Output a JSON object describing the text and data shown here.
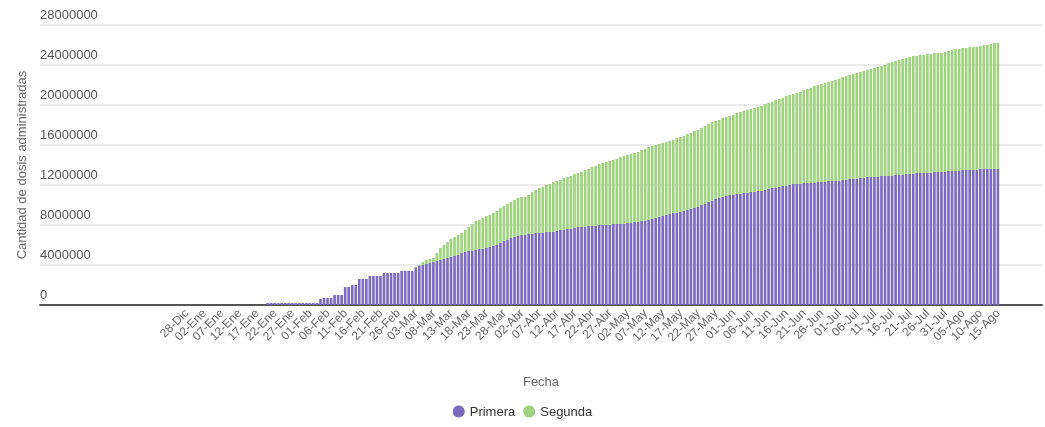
{
  "chart_data": {
    "type": "bar",
    "stacked": true,
    "xlabel": "Fecha",
    "ylabel": "Cantidad de dosis administradas",
    "categories": [
      null,
      null,
      null,
      null,
      null,
      null,
      null,
      null,
      null,
      null,
      null,
      null,
      null,
      null,
      null,
      null,
      null,
      null,
      null,
      null,
      null,
      null,
      null,
      null,
      null,
      null,
      null,
      null,
      null,
      null,
      null,
      null,
      null,
      null,
      null,
      null,
      null,
      null,
      null,
      null,
      null,
      "28-Dic",
      null,
      null,
      null,
      null,
      "02-Ene",
      null,
      null,
      null,
      null,
      "07-Ene",
      null,
      null,
      null,
      null,
      "12-Ene",
      null,
      null,
      null,
      null,
      "17-Ene",
      null,
      null,
      null,
      null,
      "22-Ene",
      null,
      null,
      null,
      null,
      "27-Ene",
      null,
      null,
      null,
      null,
      "01-Feb",
      null,
      null,
      null,
      null,
      "06-Feb",
      null,
      null,
      null,
      null,
      "11-Feb",
      null,
      null,
      null,
      null,
      "16-Feb",
      null,
      null,
      null,
      null,
      "21-Feb",
      null,
      null,
      null,
      null,
      "26-Feb",
      null,
      null,
      null,
      null,
      "03-Mar",
      null,
      null,
      null,
      null,
      "08-Mar",
      null,
      null,
      null,
      null,
      "13-Mar",
      null,
      null,
      null,
      null,
      "18-Mar",
      null,
      null,
      null,
      null,
      "23-Mar",
      null,
      null,
      null,
      null,
      "28-Mar",
      null,
      null,
      null,
      null,
      "02-Abr",
      null,
      null,
      null,
      null,
      "07-Abr",
      null,
      null,
      null,
      null,
      "12-Abr",
      null,
      null,
      null,
      null,
      "17-Abr",
      null,
      null,
      null,
      null,
      "22-Abr",
      null,
      null,
      null,
      null,
      "27-Abr",
      null,
      null,
      null,
      null,
      "02-May",
      null,
      null,
      null,
      null,
      "07-May",
      null,
      null,
      null,
      null,
      "12-May",
      null,
      null,
      null,
      null,
      "17-May",
      null,
      null,
      null,
      null,
      "22-May",
      null,
      null,
      null,
      null,
      "27-May",
      null,
      null,
      null,
      null,
      "01-Jun",
      null,
      null,
      null,
      null,
      "06-Jun",
      null,
      null,
      null,
      null,
      "11-Jun",
      null,
      null,
      null,
      null,
      "16-Jun",
      null,
      null,
      null,
      null,
      "21-Jun",
      null,
      null,
      null,
      null,
      "26-Jun",
      null,
      null,
      null,
      null,
      "01-Jul",
      null,
      null,
      null,
      null,
      "06-Jul",
      null,
      null,
      null,
      null,
      "11-Jul",
      null,
      null,
      null,
      null,
      "16-Jul",
      null,
      null,
      null,
      null,
      "21-Jul",
      null,
      null,
      null,
      null,
      "26-Jul",
      null,
      null,
      null,
      null,
      "31-Jul",
      null,
      null,
      null,
      null,
      "05-Ago",
      null,
      null,
      null,
      null,
      "10-Ago",
      null,
      null,
      null,
      null,
      "15-Ago",
      null,
      null,
      null,
      null,
      null,
      null,
      null,
      null,
      null,
      null,
      null,
      null
    ],
    "series": [
      {
        "name": "Primera",
        "color": "#7b6cc0",
        "values": [
          null,
          null,
          null,
          null,
          null,
          null,
          null,
          null,
          null,
          null,
          null,
          null,
          null,
          null,
          null,
          null,
          null,
          null,
          null,
          null,
          null,
          null,
          null,
          null,
          null,
          null,
          null,
          null,
          null,
          null,
          null,
          null,
          null,
          null,
          null,
          null,
          null,
          null,
          null,
          null,
          null,
          null,
          null,
          null,
          null,
          null,
          null,
          null,
          null,
          null,
          null,
          null,
          null,
          null,
          null,
          null,
          null,
          null,
          null,
          null,
          null,
          null,
          null,
          null,
          200000,
          200000,
          200000,
          200000,
          200000,
          200000,
          200000,
          200000,
          200000,
          200000,
          200000,
          200000,
          200000,
          200000,
          200000,
          600000,
          700000,
          700000,
          700000,
          1000000,
          1000000,
          1000000,
          1800000,
          1800000,
          2000000,
          2000000,
          2600000,
          2600000,
          2600000,
          2900000,
          2900000,
          2900000,
          2900000,
          3200000,
          3200000,
          3200000,
          3200000,
          3200000,
          3400000,
          3400000,
          3400000,
          3400000,
          3700000,
          3900000,
          4000000,
          4100000,
          4200000,
          4300000,
          4400000,
          4500000,
          4600000,
          4700000,
          4800000,
          4900000,
          5000000,
          5200000,
          5300000,
          5400000,
          5400000,
          5500000,
          5600000,
          5600000,
          5700000,
          5800000,
          5900000,
          6000000,
          6200000,
          6400000,
          6500000,
          6700000,
          6800000,
          6900000,
          7000000,
          7000000,
          7100000,
          7100000,
          7200000,
          7200000,
          7200000,
          7300000,
          7300000,
          7300000,
          7400000,
          7500000,
          7500000,
          7600000,
          7600000,
          7700000,
          7800000,
          7800000,
          7800000,
          7900000,
          7900000,
          7900000,
          8000000,
          8000000,
          8000000,
          8000000,
          8100000,
          8100000,
          8100000,
          8100000,
          8200000,
          8200000,
          8300000,
          8300000,
          8400000,
          8400000,
          8500000,
          8600000,
          8700000,
          8800000,
          8900000,
          9000000,
          9100000,
          9200000,
          9200000,
          9300000,
          9400000,
          9500000,
          9600000,
          9700000,
          9800000,
          10000000,
          10100000,
          10300000,
          10400000,
          10600000,
          10700000,
          10800000,
          10900000,
          11000000,
          11000000,
          11100000,
          11100000,
          11200000,
          11200000,
          11300000,
          11300000,
          11400000,
          11400000,
          11500000,
          11600000,
          11700000,
          11700000,
          11800000,
          11900000,
          11900000,
          12000000,
          12100000,
          12100000,
          12100000,
          12200000,
          12200000,
          12200000,
          12200000,
          12300000,
          12300000,
          12300000,
          12400000,
          12400000,
          12400000,
          12400000,
          12500000,
          12500000,
          12600000,
          12600000,
          12600000,
          12700000,
          12700000,
          12800000,
          12800000,
          12800000,
          12800000,
          12900000,
          12900000,
          12900000,
          12900000,
          13000000,
          13000000,
          13000000,
          13100000,
          13100000,
          13100000,
          13200000,
          13200000,
          13200000,
          13200000,
          13200000,
          13300000,
          13300000,
          13300000,
          13300000,
          13400000,
          13400000,
          13400000,
          13400000,
          13500000,
          13500000,
          13500000,
          13500000,
          13500000,
          13600000,
          13600000,
          13600000,
          13600000,
          13600000,
          13600000,
          null,
          null,
          null,
          null,
          null,
          null,
          null,
          null,
          null,
          null,
          null,
          null
        ]
      },
      {
        "name": "Segunda",
        "color": "#9fd17f",
        "values": [
          null,
          null,
          null,
          null,
          null,
          null,
          null,
          null,
          null,
          null,
          null,
          null,
          null,
          null,
          null,
          null,
          null,
          null,
          null,
          null,
          null,
          null,
          null,
          null,
          null,
          null,
          null,
          null,
          null,
          null,
          null,
          null,
          null,
          null,
          null,
          null,
          null,
          null,
          null,
          null,
          null,
          null,
          null,
          null,
          null,
          null,
          null,
          null,
          null,
          null,
          null,
          null,
          null,
          null,
          null,
          null,
          null,
          null,
          null,
          null,
          null,
          null,
          null,
          null,
          0,
          0,
          0,
          0,
          0,
          0,
          0,
          0,
          0,
          0,
          0,
          0,
          0,
          0,
          0,
          0,
          0,
          0,
          0,
          0,
          0,
          0,
          0,
          0,
          0,
          0,
          0,
          0,
          0,
          0,
          0,
          0,
          0,
          0,
          0,
          0,
          0,
          0,
          0,
          0,
          0,
          0,
          100000,
          100000,
          300000,
          400000,
          400000,
          400000,
          800000,
          1200000,
          1400000,
          1600000,
          1800000,
          1900000,
          2000000,
          2000000,
          2200000,
          2400000,
          2700000,
          2900000,
          2900000,
          3100000,
          3200000,
          3200000,
          3300000,
          3400000,
          3500000,
          3500000,
          3600000,
          3600000,
          3700000,
          3800000,
          3800000,
          3800000,
          3900000,
          4200000,
          4300000,
          4500000,
          4600000,
          4700000,
          4800000,
          5000000,
          5000000,
          5000000,
          5200000,
          5200000,
          5300000,
          5400000,
          5400000,
          5500000,
          5700000,
          5700000,
          5900000,
          6000000,
          6100000,
          6200000,
          6300000,
          6400000,
          6400000,
          6500000,
          6700000,
          6800000,
          6800000,
          6900000,
          6900000,
          7000000,
          7100000,
          7200000,
          7300000,
          7300000,
          7300000,
          7300000,
          7300000,
          7300000,
          7300000,
          7300000,
          7500000,
          7500000,
          7500000,
          7600000,
          7600000,
          7700000,
          7700000,
          7700000,
          7800000,
          7800000,
          7900000,
          7800000,
          7800000,
          7900000,
          7900000,
          7900000,
          8000000,
          8100000,
          8200000,
          8200000,
          8300000,
          8300000,
          8400000,
          8400000,
          8500000,
          8600000,
          8600000,
          8600000,
          8800000,
          8800000,
          8800000,
          9000000,
          9000000,
          9000000,
          9100000,
          9200000,
          9300000,
          9400000,
          9500000,
          9700000,
          9700000,
          9800000,
          9900000,
          9900000,
          10000000,
          10100000,
          10200000,
          10300000,
          10400000,
          10400000,
          10500000,
          10600000,
          10600000,
          10700000,
          10700000,
          10800000,
          10900000,
          11000000,
          11000000,
          11100000,
          11300000,
          11400000,
          11400000,
          11500000,
          11600000,
          11600000,
          11700000,
          11800000,
          11700000,
          11800000,
          11800000,
          11900000,
          11900000,
          11900000,
          11900000,
          11900000,
          12000000,
          12000000,
          12100000,
          12200000,
          12200000,
          12200000,
          12200000,
          12300000,
          12300000,
          12300000,
          12300000,
          12400000,
          12400000,
          12500000,
          12600000,
          12600000,
          null,
          null,
          null,
          null,
          null,
          null,
          null,
          null,
          null,
          null,
          null,
          null
        ]
      }
    ],
    "ylim": [
      0,
      28000000
    ],
    "yticks": [
      0,
      4000000,
      8000000,
      12000000,
      16000000,
      20000000,
      24000000,
      28000000
    ],
    "grid": "y",
    "legend": "bottom"
  }
}
